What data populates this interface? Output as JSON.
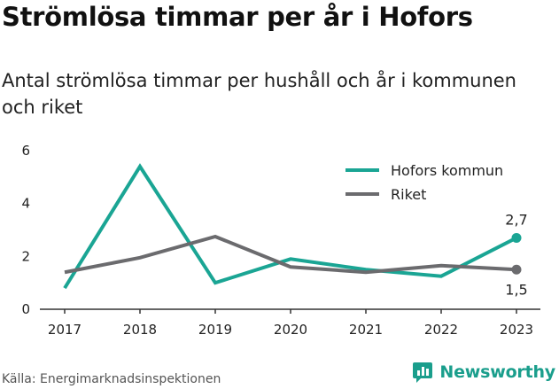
{
  "chart_data": {
    "type": "line",
    "title": "Strömlösa timmar per år i Hofors",
    "subtitle": "Antal strömlösa timmar per hushåll och år i kommunen och riket",
    "x": [
      "2017",
      "2018",
      "2019",
      "2020",
      "2021",
      "2022",
      "2023"
    ],
    "ylim": [
      0,
      6
    ],
    "yticks": [
      "0",
      "2",
      "4",
      "6"
    ],
    "grid": false,
    "legend_position": "top-right",
    "series": [
      {
        "name": "Hofors kommun",
        "color": "#1aa594",
        "values": [
          0.8,
          5.4,
          1.0,
          1.9,
          1.5,
          1.25,
          2.7
        ],
        "end_label": "2,7"
      },
      {
        "name": "Riket",
        "color": "#6b6b6e",
        "values": [
          1.4,
          1.95,
          2.75,
          1.6,
          1.4,
          1.65,
          1.5
        ],
        "end_label": "1,5"
      }
    ]
  },
  "footer": {
    "source": "Källa: Energimarknadsinspektionen",
    "brand": "Newsworthy"
  },
  "colors": {
    "brand": "#1a9e8c",
    "axis": "#333333"
  },
  "icons": {
    "brand": "chart-bubble-icon"
  }
}
